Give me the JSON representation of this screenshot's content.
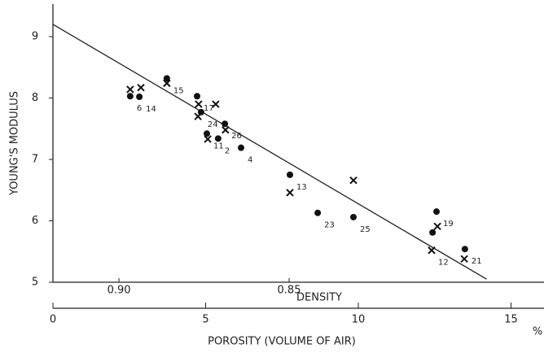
{
  "chart_data": {
    "type": "scatter",
    "ylabel": "YOUNG'S MODULUS",
    "xlabel": "POROSITY (VOLUME OF AIR)",
    "xunit": "%",
    "x2label": "DENSITY",
    "xlim": [
      0,
      16.08
    ],
    "xticks": [
      0,
      5,
      10,
      15
    ],
    "x2lim": [
      0.9194,
      0.7751
    ],
    "x2ticks": [
      {
        "value": 0.9,
        "label": "0.90"
      },
      0.85
    ],
    "ylim": [
      5,
      9.53
    ],
    "yticks": [
      5,
      6,
      7,
      8,
      9
    ],
    "fit_line": {
      "x": [
        0,
        14.2
      ],
      "values": [
        9.2,
        5.05
      ]
    },
    "series": [
      {
        "marker": "circle",
        "color": "#111111",
        "x": [
          2.53,
          2.83,
          3.73,
          4.72,
          4.85,
          5.63,
          5.04,
          5.41,
          6.16,
          7.76,
          8.67,
          9.84,
          12.56,
          12.43,
          13.49
        ],
        "values": [
          8.03,
          8.02,
          8.32,
          8.03,
          7.77,
          7.58,
          7.42,
          7.34,
          7.19,
          6.75,
          6.13,
          6.06,
          6.15,
          5.81,
          5.54
        ],
        "labels": [
          "6",
          "14",
          "15",
          "17",
          "24",
          "26",
          "11",
          "2",
          "4",
          "13",
          "23",
          "25",
          "19",
          null,
          "21"
        ]
      },
      {
        "marker": "cross",
        "color": "#111111",
        "x": [
          2.53,
          2.88,
          3.73,
          4.77,
          5.33,
          4.75,
          5.65,
          5.07,
          7.76,
          9.84,
          12.59,
          12.4,
          13.47
        ],
        "values": [
          8.14,
          8.17,
          8.24,
          7.9,
          7.9,
          7.7,
          7.48,
          7.33,
          6.46,
          6.66,
          5.91,
          5.52,
          5.38
        ],
        "labels": [
          null,
          null,
          null,
          null,
          null,
          null,
          null,
          null,
          null,
          null,
          null,
          "12",
          null
        ]
      }
    ]
  }
}
